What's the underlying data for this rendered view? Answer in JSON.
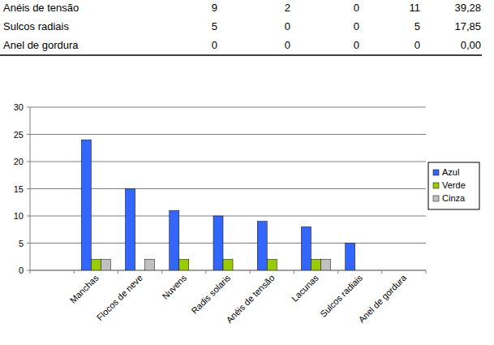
{
  "table": {
    "rows": [
      [
        "Anéis de tensão",
        "9",
        "2",
        "0",
        "11",
        "39,28"
      ],
      [
        "Sulcos radiais",
        "5",
        "0",
        "0",
        "5",
        "17,85"
      ],
      [
        "Anel de gordura",
        "0",
        "0",
        "0",
        "0",
        "0,00"
      ]
    ]
  },
  "chart_data": {
    "type": "bar",
    "categories": [
      null,
      "Manchas",
      "Flocos de neve",
      "Nuvens",
      "Radis solaris",
      "Anéis de tensão",
      "Lacunas",
      "Sulcos radiais",
      "Anel de gordura"
    ],
    "series": [
      {
        "name": "Azul",
        "color": "#3366ff",
        "values": [
          null,
          24,
          15,
          11,
          10,
          9,
          8,
          5,
          0
        ]
      },
      {
        "name": "Verde",
        "color": "#99cc00",
        "values": [
          null,
          2,
          0,
          2,
          2,
          2,
          2,
          0,
          0
        ]
      },
      {
        "name": "Cinza",
        "color": "#c0c0c0",
        "values": [
          null,
          2,
          2,
          0,
          0,
          0,
          2,
          0,
          0
        ]
      }
    ],
    "ylim": [
      0,
      30
    ],
    "yticks": [
      0,
      5,
      10,
      15,
      20,
      25,
      30
    ],
    "grid": true,
    "legend": "right"
  }
}
